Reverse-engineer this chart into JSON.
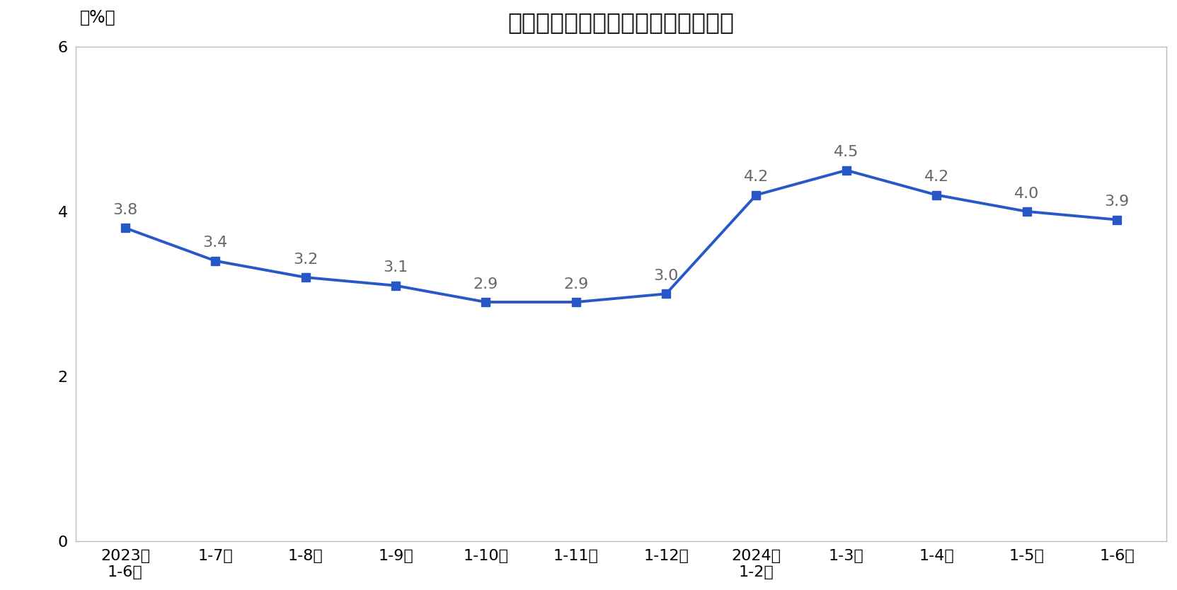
{
  "title": "固定资产投资（不含农户）同比增速",
  "ylabel": "（%）",
  "x_labels": [
    "2023年\n1-6月",
    "1-7月",
    "1-8月",
    "1-9月",
    "1-10月",
    "1-11月",
    "1-12月",
    "2024年\n1-2月",
    "1-3月",
    "1-4月",
    "1-5月",
    "1-6月"
  ],
  "values": [
    3.8,
    3.4,
    3.2,
    3.1,
    2.9,
    2.9,
    3.0,
    4.2,
    4.5,
    4.2,
    4.0,
    3.9
  ],
  "line_color": "#2858C8",
  "marker": "s",
  "marker_size": 8,
  "ylim": [
    0,
    6
  ],
  "yticks": [
    0,
    2,
    4,
    6
  ],
  "background_color": "#FFFFFF",
  "plot_bg_color": "#FFFFFF",
  "border_color": "#BBBBBB",
  "title_fontsize": 24,
  "label_fontsize": 17,
  "tick_fontsize": 16,
  "annotation_fontsize": 16,
  "annotation_color": "#666666"
}
